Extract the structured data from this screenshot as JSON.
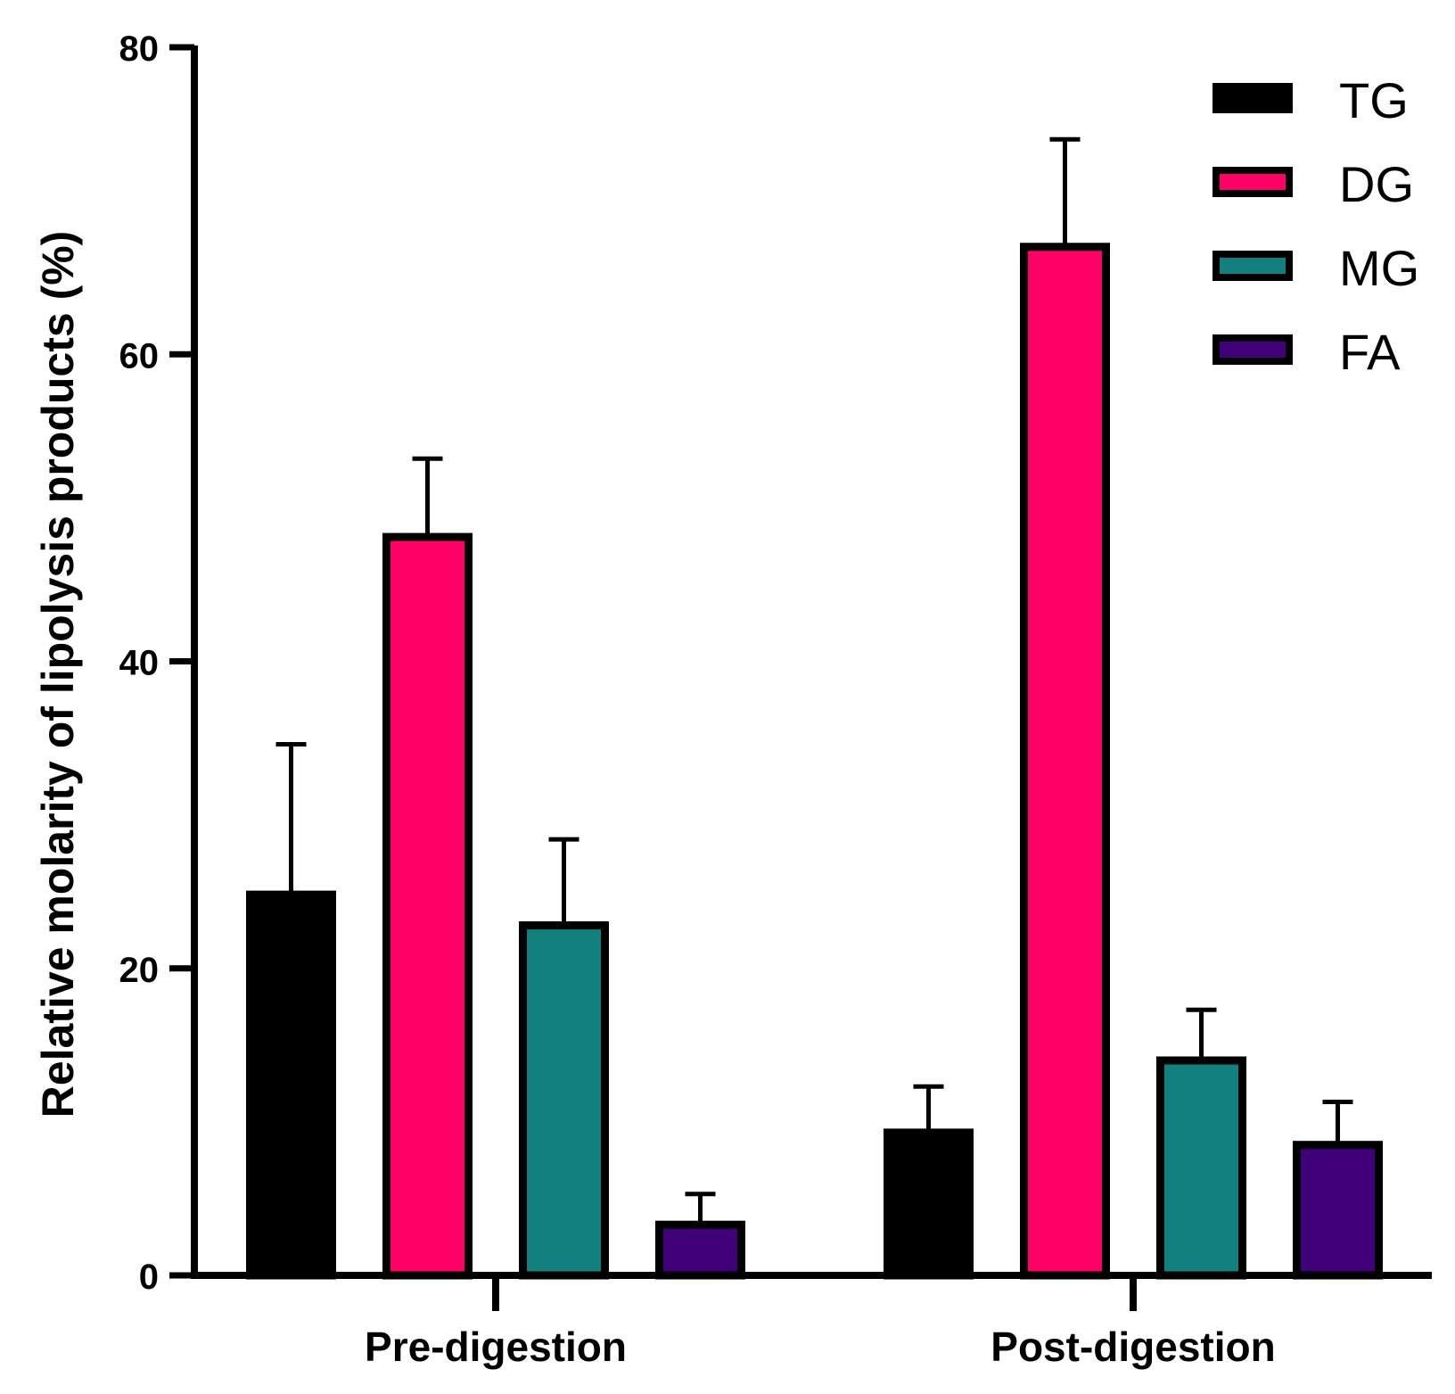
{
  "chart_data": {
    "type": "bar",
    "title": "",
    "xlabel": "",
    "ylabel": "Relative molarity of lipolysis products (%)",
    "ylim": [
      0,
      80
    ],
    "yticks": [
      0,
      20,
      40,
      60,
      80
    ],
    "categories": [
      "Pre-digestion",
      "Post-digestion"
    ],
    "series": [
      {
        "name": "TG",
        "color": "#000000",
        "values": [
          24.8,
          9.3
        ],
        "errors": [
          9.8,
          3.0
        ]
      },
      {
        "name": "DG",
        "color": "#ff0066",
        "values": [
          48.1,
          67.0
        ],
        "errors": [
          5.1,
          7.0
        ]
      },
      {
        "name": "MG",
        "color": "#138080",
        "values": [
          22.8,
          14.0
        ],
        "errors": [
          5.6,
          3.3
        ]
      },
      {
        "name": "FA",
        "color": "#400078",
        "values": [
          3.3,
          8.5
        ],
        "errors": [
          2.0,
          2.8
        ]
      }
    ],
    "legend_position": "top-right",
    "grid": false
  }
}
